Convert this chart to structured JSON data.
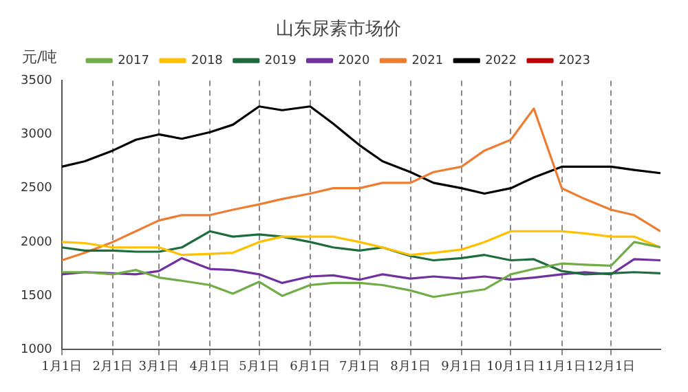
{
  "chart_data": {
    "type": "line",
    "title": "山东尿素市场价",
    "ylabel": "元/吨",
    "x": [
      "--01-01",
      "--01-15",
      "--02-01",
      "--02-15",
      "--03-01",
      "--03-15",
      "--04-01",
      "--04-15",
      "--05-01",
      "--05-15",
      "--06-01",
      "--06-15",
      "--07-01",
      "--07-15",
      "--08-01",
      "--08-15",
      "--09-01",
      "--09-15",
      "--10-01",
      "--10-15",
      "--11-01",
      "--11-15",
      "--12-01",
      "--12-15",
      "--12-31"
    ],
    "series": [
      {
        "name": "2017",
        "color": "#70ad47",
        "values": [
          1720,
          1720,
          1700,
          1740,
          1670,
          1640,
          1600,
          1520,
          1630,
          1500,
          1600,
          1620,
          1620,
          1600,
          1550,
          1490,
          1530,
          1560,
          1700,
          1750,
          1800,
          1790,
          1780,
          2000,
          1950
        ]
      },
      {
        "name": "2018",
        "color": "#ffc000",
        "values": [
          2000,
          1990,
          1950,
          1950,
          1950,
          1880,
          1890,
          1900,
          2000,
          2050,
          2050,
          2050,
          2000,
          1950,
          1880,
          1900,
          1930,
          2000,
          2100,
          2100,
          2100,
          2080,
          2050,
          2050,
          1950
        ]
      },
      {
        "name": "2019",
        "color": "#1e6b3c",
        "values": [
          1950,
          1920,
          1920,
          1910,
          1910,
          1950,
          2100,
          2050,
          2070,
          2050,
          2000,
          1950,
          1920,
          1950,
          1870,
          1830,
          1850,
          1880,
          1830,
          1840,
          1730,
          1700,
          1710,
          1720,
          1710
        ]
      },
      {
        "name": "2020",
        "color": "#7030a0",
        "values": [
          1700,
          1720,
          1710,
          1700,
          1730,
          1850,
          1750,
          1740,
          1700,
          1620,
          1680,
          1690,
          1650,
          1700,
          1660,
          1680,
          1660,
          1680,
          1650,
          1670,
          1700,
          1720,
          1700,
          1840,
          1830
        ]
      },
      {
        "name": "2021",
        "color": "#ed7d31",
        "values": [
          1830,
          1900,
          2000,
          2100,
          2200,
          2250,
          2250,
          2300,
          2350,
          2400,
          2450,
          2500,
          2500,
          2550,
          2550,
          2650,
          2700,
          2850,
          2950,
          3240,
          2500,
          2400,
          2300,
          2250,
          2100
        ]
      },
      {
        "name": "2022",
        "color": "#000000",
        "values": [
          2700,
          2750,
          2850,
          2950,
          3000,
          2960,
          3020,
          3090,
          3260,
          3225,
          3260,
          3100,
          2900,
          2750,
          2650,
          2550,
          2500,
          2450,
          2500,
          2600,
          2700,
          2700,
          2700,
          2670,
          2640
        ]
      },
      {
        "name": "2023",
        "color": "#c00000",
        "values": [
          null,
          null,
          null,
          null,
          null,
          null,
          null,
          null,
          null,
          null,
          null,
          null,
          null,
          null,
          null,
          null,
          null,
          null,
          null,
          null,
          null,
          null,
          null,
          null,
          null
        ]
      }
    ],
    "xlim": [
      "--01-01",
      "--12-31"
    ],
    "xticks": [
      {
        "value": "--01-01",
        "label": "1月1日"
      },
      {
        "value": "--02-01",
        "label": "2月1日"
      },
      {
        "value": "--03-01",
        "label": "3月1日"
      },
      {
        "value": "--04-01",
        "label": "4月1日"
      },
      {
        "value": "--05-01",
        "label": "5月1日"
      },
      {
        "value": "--06-01",
        "label": "6月1日"
      },
      {
        "value": "--07-01",
        "label": "7月1日"
      },
      {
        "value": "--08-01",
        "label": "8月1日"
      },
      {
        "value": "--09-01",
        "label": "9月1日"
      },
      {
        "value": "--10-01",
        "label": "10月1日"
      },
      {
        "value": "--11-01",
        "label": "11月1日"
      },
      {
        "value": "--12-01",
        "label": "12月1日"
      }
    ],
    "ylim": [
      1000,
      3500
    ],
    "yticks": [
      1000,
      1500,
      2000,
      2500,
      3000,
      3500
    ],
    "grid": "x",
    "legend": "top",
    "marker": "none",
    "line_style": "solid"
  }
}
